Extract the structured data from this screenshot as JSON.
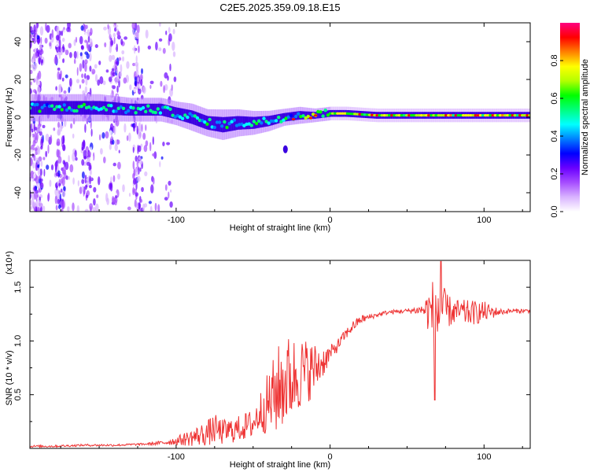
{
  "title": "C2E5.2025.359.09.18.E15",
  "chart_data": [
    {
      "type": "heatmap",
      "title": "C2E5.2025.359.09.18.E15",
      "xlabel": "Height of straight line (km)",
      "ylabel": "Frequency (Hz)",
      "xlim": [
        -195,
        130
      ],
      "ylim": [
        -50,
        50
      ],
      "xticks": [
        -100,
        0,
        100
      ],
      "yticks": [
        -40,
        -20,
        0,
        20,
        40
      ],
      "colorbar": {
        "label": "Normalized spectral amplitude",
        "range": [
          0,
          1
        ],
        "ticks": [
          "0.0",
          "0.2",
          "0.4",
          "0.6",
          "0.8"
        ],
        "colors": [
          "#ffffff",
          "#d9b3ff",
          "#a64dff",
          "#6a00ff",
          "#0000ff",
          "#0080ff",
          "#00ffff",
          "#00ff80",
          "#00ff00",
          "#b3ff00",
          "#ffff00",
          "#ff8000",
          "#ff0000",
          "#ff0080"
        ]
      },
      "ridge": {
        "x": [
          -195,
          -170,
          -150,
          -130,
          -110,
          -100,
          -90,
          -80,
          -70,
          -60,
          -50,
          -40,
          -30,
          -20,
          -10,
          0,
          10,
          30,
          60,
          90,
          110,
          130
        ],
        "center_hz": [
          5,
          5,
          5,
          4,
          4,
          2,
          0,
          -3,
          -4,
          -3,
          -3,
          -2,
          0,
          1,
          1,
          2,
          2,
          1,
          1,
          1,
          1,
          1
        ],
        "width_hz": [
          8,
          8,
          8,
          7,
          7,
          7,
          8,
          8,
          9,
          8,
          7,
          6,
          5,
          5,
          4,
          4,
          4,
          4,
          4,
          4,
          4,
          4
        ]
      }
    },
    {
      "type": "line",
      "xlabel": "Height of straight line (km)",
      "ylabel": "SNR (10 * v/v)",
      "y_multiplier": "(x10⁴)",
      "xlim": [
        -195,
        130
      ],
      "ylim": [
        0,
        1.75
      ],
      "xticks": [
        -100,
        0,
        100
      ],
      "yticks": [
        0.5,
        1.0,
        1.5
      ],
      "ytick_labels": [
        "0.5",
        "1.0",
        "1.5"
      ],
      "series": [
        {
          "name": "SNR",
          "color": "#ee3333",
          "x": [
            -195,
            -180,
            -160,
            -140,
            -120,
            -110,
            -100,
            -90,
            -80,
            -75,
            -70,
            -60,
            -50,
            -45,
            -40,
            -35,
            -30,
            -25,
            -20,
            -15,
            -10,
            -5,
            0,
            5,
            10,
            15,
            20,
            25,
            30,
            35,
            40,
            50,
            60,
            65,
            70,
            75,
            80,
            90,
            100,
            110,
            120,
            130
          ],
          "y": [
            0.02,
            0.02,
            0.03,
            0.03,
            0.04,
            0.05,
            0.07,
            0.1,
            0.14,
            0.18,
            0.15,
            0.18,
            0.23,
            0.35,
            0.42,
            0.52,
            0.62,
            0.65,
            0.7,
            0.72,
            0.74,
            0.8,
            0.88,
            0.96,
            1.06,
            1.14,
            1.2,
            1.22,
            1.24,
            1.26,
            1.27,
            1.28,
            1.29,
            1.28,
            1.27,
            1.28,
            1.27,
            1.26,
            1.27,
            1.27,
            1.28,
            1.28
          ],
          "noise": [
            0.01,
            0.01,
            0.01,
            0.01,
            0.01,
            0.02,
            0.04,
            0.08,
            0.12,
            0.14,
            0.12,
            0.12,
            0.14,
            0.2,
            0.3,
            0.4,
            0.45,
            0.4,
            0.35,
            0.3,
            0.25,
            0.15,
            0.08,
            0.06,
            0.05,
            0.05,
            0.04,
            0.03,
            0.02,
            0.02,
            0.02,
            0.02,
            0.05,
            0.25,
            0.4,
            0.18,
            0.12,
            0.12,
            0.1,
            0.03,
            0.02,
            0.02
          ]
        }
      ]
    }
  ]
}
